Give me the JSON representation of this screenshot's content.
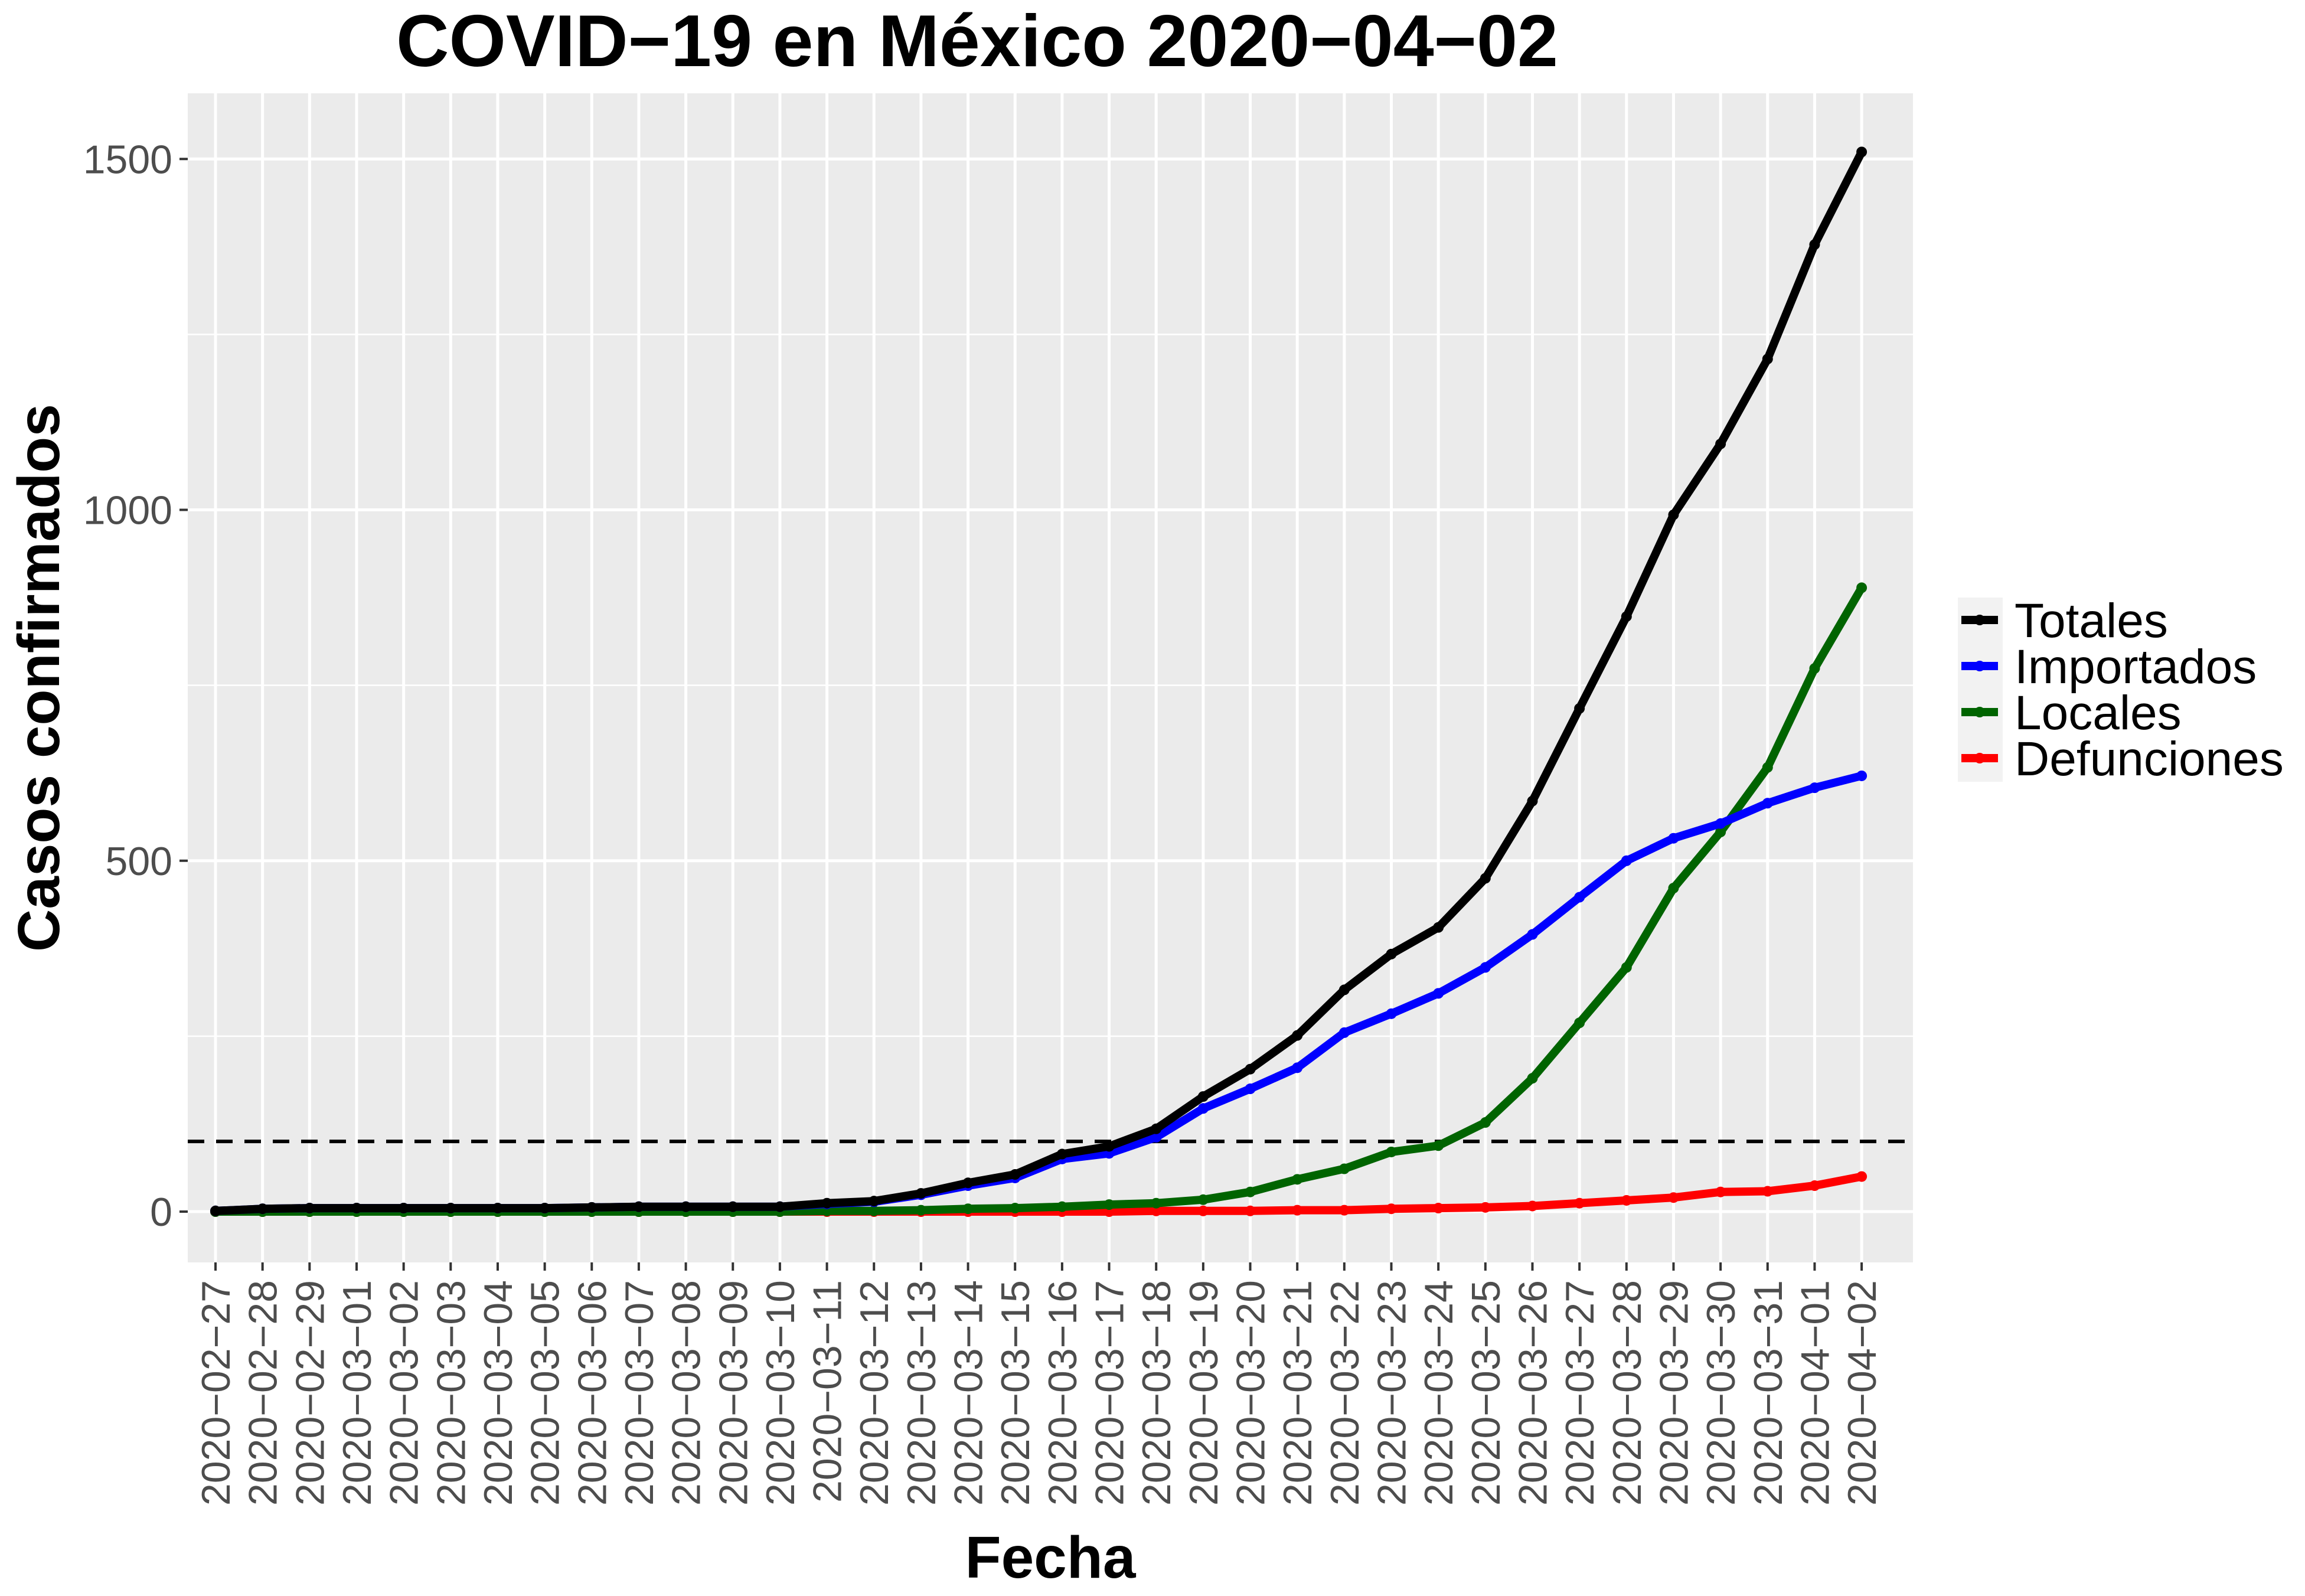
{
  "chart_data": {
    "type": "line",
    "title": "COVID−19 en México 2020−04−02",
    "xlabel": "Fecha",
    "ylabel": "Casos confirmados",
    "ylim": [
      -75,
      1600
    ],
    "yticks": [
      0,
      500,
      1000,
      1500
    ],
    "grid": true,
    "legend_position": "right",
    "reference_line": {
      "y": 100,
      "style": "dashed",
      "color": "#000000"
    },
    "x": [
      "2020−02−27",
      "2020−02−28",
      "2020−02−29",
      "2020−03−01",
      "2020−03−02",
      "2020−03−03",
      "2020−03−04",
      "2020−03−05",
      "2020−03−06",
      "2020−03−07",
      "2020−03−08",
      "2020−03−09",
      "2020−03−10",
      "2020−03−11",
      "2020−03−12",
      "2020−03−13",
      "2020−03−14",
      "2020−03−15",
      "2020−03−16",
      "2020−03−17",
      "2020−03−18",
      "2020−03−19",
      "2020−03−20",
      "2020−03−21",
      "2020−03−22",
      "2020−03−23",
      "2020−03−24",
      "2020−03−25",
      "2020−03−26",
      "2020−03−27",
      "2020−03−28",
      "2020−03−29",
      "2020−03−30",
      "2020−03−31",
      "2020−04−01",
      "2020−04−02"
    ],
    "series": [
      {
        "name": "Totales",
        "color": "#000000",
        "values": [
          1,
          4,
          5,
          5,
          5,
          5,
          5,
          5,
          6,
          7,
          7,
          7,
          7,
          12,
          15,
          26,
          41,
          53,
          82,
          93,
          118,
          164,
          203,
          251,
          316,
          367,
          405,
          475,
          585,
          717,
          848,
          993,
          1094,
          1215,
          1378,
          1510
        ]
      },
      {
        "name": "Importados",
        "color": "#0000ff",
        "values": [
          1,
          4,
          5,
          5,
          5,
          5,
          5,
          5,
          6,
          7,
          7,
          7,
          7,
          11,
          14,
          24,
          37,
          48,
          75,
          83,
          106,
          147,
          175,
          205,
          255,
          282,
          311,
          348,
          395,
          448,
          500,
          532,
          553,
          582,
          604,
          621
        ]
      },
      {
        "name": "Locales",
        "color": "#006400",
        "values": [
          0,
          0,
          0,
          0,
          0,
          0,
          0,
          0,
          0,
          0,
          0,
          0,
          0,
          1,
          1,
          2,
          4,
          5,
          7,
          10,
          12,
          17,
          28,
          46,
          61,
          85,
          94,
          127,
          190,
          269,
          348,
          461,
          541,
          633,
          774,
          889
        ]
      },
      {
        "name": "Defunciones",
        "color": "#ff0000",
        "values": [
          0,
          0,
          0,
          0,
          0,
          0,
          0,
          0,
          0,
          0,
          0,
          0,
          0,
          0,
          0,
          0,
          0,
          0,
          0,
          0,
          1,
          1,
          1,
          2,
          2,
          4,
          5,
          6,
          8,
          12,
          16,
          20,
          28,
          29,
          37,
          50
        ]
      }
    ]
  }
}
